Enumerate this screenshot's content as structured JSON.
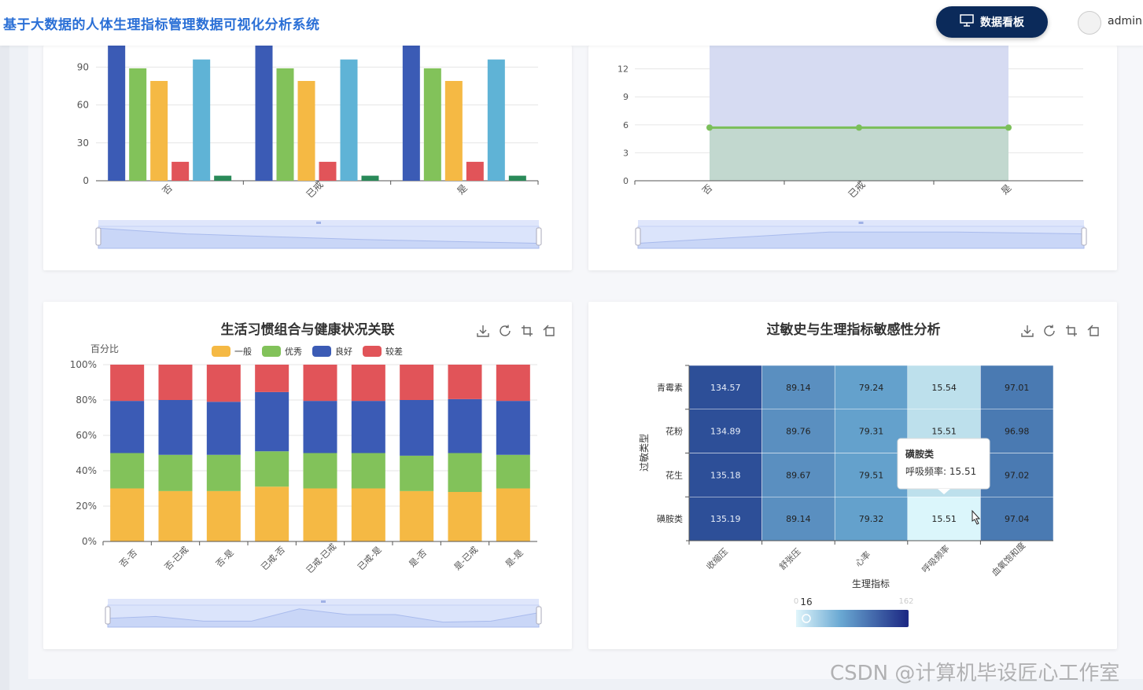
{
  "header": {
    "title": "基于大数据的人体生理指标管理数据可视化分析系统",
    "dashboard_label": "数据看板",
    "user": "admin"
  },
  "chart_data": [
    {
      "type": "bar",
      "categories": [
        "否",
        "已戒",
        "是"
      ],
      "series": [
        {
          "values": [
            107,
            107,
            107
          ],
          "color": "#3b5bb5"
        },
        {
          "values": [
            89,
            89,
            89
          ],
          "color": "#82c25a"
        },
        {
          "values": [
            79,
            79,
            79
          ],
          "color": "#f5b944"
        },
        {
          "values": [
            15,
            15,
            15
          ],
          "color": "#e15459"
        },
        {
          "values": [
            96,
            96,
            96
          ],
          "color": "#5fb3d6"
        },
        {
          "values": [
            4,
            4,
            4
          ],
          "color": "#2a8a59"
        }
      ],
      "yticks": [
        "0",
        "30",
        "60",
        "90"
      ],
      "ylim": [
        0,
        107
      ]
    },
    {
      "type": "area",
      "categories": [
        "否",
        "已戒",
        "是"
      ],
      "values": [
        5.7,
        5.7,
        5.7
      ],
      "band": [
        0,
        14.5
      ],
      "yticks": [
        "0",
        "3",
        "6",
        "9",
        "12"
      ],
      "ylim": [
        0,
        14.5
      ],
      "line_color": "#7bbf5a"
    },
    {
      "type": "bar",
      "title": "生活习惯组合与健康状况关联",
      "ylabel": "百分比",
      "yticks": [
        "0%",
        "20%",
        "40%",
        "60%",
        "80%",
        "100%"
      ],
      "categories": [
        "否-否",
        "否-已戒",
        "否-是",
        "已戒-否",
        "已戒-已戒",
        "已戒-是",
        "是-否",
        "是-已戒",
        "是-是"
      ],
      "series": [
        {
          "name": "一般",
          "color": "#f5b944",
          "values": [
            30,
            28.5,
            28.5,
            31,
            30,
            30,
            28.5,
            28,
            30
          ]
        },
        {
          "name": "优秀",
          "color": "#82c25a",
          "values": [
            20,
            20.5,
            20.5,
            20,
            20,
            20,
            20,
            22,
            19
          ]
        },
        {
          "name": "良好",
          "color": "#3b5bb5",
          "values": [
            29.5,
            31,
            30,
            33.5,
            29.5,
            29.5,
            31.5,
            30.5,
            30.5
          ]
        },
        {
          "name": "较差",
          "color": "#e15459",
          "values": [
            20.5,
            20,
            21,
            15.5,
            20.5,
            20.5,
            20,
            19.5,
            20.5
          ]
        }
      ]
    },
    {
      "type": "heatmap",
      "title": "过敏史与生理指标敏感性分析",
      "xlabel": "生理指标",
      "ylabel": "过敏类型",
      "x": [
        "收缩压",
        "舒张压",
        "心率",
        "呼吸频率",
        "血氧饱和度"
      ],
      "y": [
        "青霉素",
        "花粉",
        "花生",
        "磺胺类"
      ],
      "values": [
        [
          134.57,
          89.14,
          79.24,
          15.54,
          97.01
        ],
        [
          134.89,
          89.76,
          79.31,
          15.51,
          96.98
        ],
        [
          135.18,
          89.67,
          79.51,
          15.51,
          97.02
        ],
        [
          135.19,
          89.14,
          79.32,
          15.51,
          97.04
        ]
      ],
      "visualmap": {
        "min": "0",
        "max": "162",
        "current": "16"
      },
      "tooltip": {
        "title": "磺胺类",
        "label": "呼吸频率: 15.51"
      }
    }
  ],
  "watermark": "CSDN @计算机毕设匠心工作室"
}
